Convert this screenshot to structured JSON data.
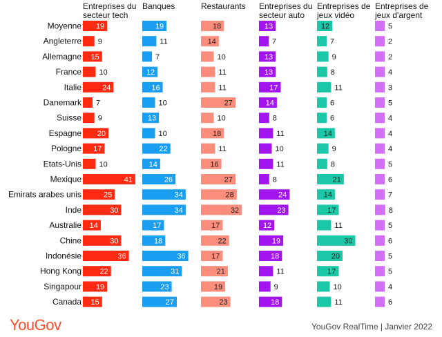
{
  "chart_data": {
    "type": "bar",
    "categories": [
      "Moyenne",
      "Angleterre",
      "Allemagne",
      "France",
      "Italie",
      "Danemark",
      "Suisse",
      "Espagne",
      "Pologne",
      "Etats-Unis",
      "Mexique",
      "Emirats arabes unis",
      "Inde",
      "Australie",
      "Chine",
      "Indonésie",
      "Hong Kong",
      "Singapour",
      "Canada"
    ],
    "series": [
      {
        "name": "Entreprises du secteur tech",
        "name_lines": [
          "Entreprises du",
          "secteur tech"
        ],
        "color": "#ff2a12",
        "values": [
          19,
          9,
          15,
          10,
          24,
          7,
          9,
          20,
          17,
          10,
          41,
          25,
          30,
          14,
          30,
          36,
          22,
          19,
          15
        ]
      },
      {
        "name": "Banques",
        "name_lines": [
          "Banques"
        ],
        "color": "#1a9ef2",
        "values": [
          19,
          11,
          7,
          12,
          16,
          10,
          13,
          10,
          22,
          14,
          26,
          34,
          34,
          17,
          18,
          36,
          31,
          23,
          27
        ]
      },
      {
        "name": "Restaurants",
        "name_lines": [
          "Restaurants"
        ],
        "color": "#fa8d7c",
        "values": [
          18,
          14,
          10,
          11,
          11,
          27,
          10,
          18,
          11,
          16,
          27,
          28,
          32,
          17,
          22,
          17,
          21,
          19,
          23
        ]
      },
      {
        "name": "Entreprises du secteur auto",
        "name_lines": [
          "Entreprises du",
          "secteur auto"
        ],
        "color": "#a315ee",
        "values": [
          13,
          7,
          13,
          13,
          17,
          14,
          8,
          11,
          10,
          11,
          8,
          24,
          23,
          12,
          19,
          18,
          11,
          9,
          18
        ]
      },
      {
        "name": "Entreprises de jeux vidéo",
        "name_lines": [
          "Entreprises de",
          "jeux vidéo"
        ],
        "color": "#1cc7a7",
        "values": [
          12,
          7,
          9,
          8,
          11,
          6,
          6,
          14,
          9,
          8,
          21,
          14,
          17,
          11,
          30,
          20,
          17,
          10,
          11
        ]
      },
      {
        "name": "Entreprises de jeux d'argent",
        "name_lines": [
          "Entreprises de",
          "jeux d'argent"
        ],
        "color": "#d36ff6",
        "values": [
          5,
          2,
          2,
          4,
          3,
          5,
          4,
          4,
          4,
          5,
          6,
          7,
          8,
          5,
          6,
          5,
          5,
          4,
          6
        ]
      }
    ],
    "title": "",
    "xlabel": "",
    "ylabel": "",
    "grid": false,
    "legend": "none"
  },
  "footer": {
    "logo": "YouGov",
    "source": "YouGov RealTime | Janvier 2022"
  },
  "colors": {
    "label_on_bar_dark": "#222222",
    "label_on_bar_light": "#ffffff",
    "text": "#111111",
    "logo": "#ff4b2b"
  }
}
